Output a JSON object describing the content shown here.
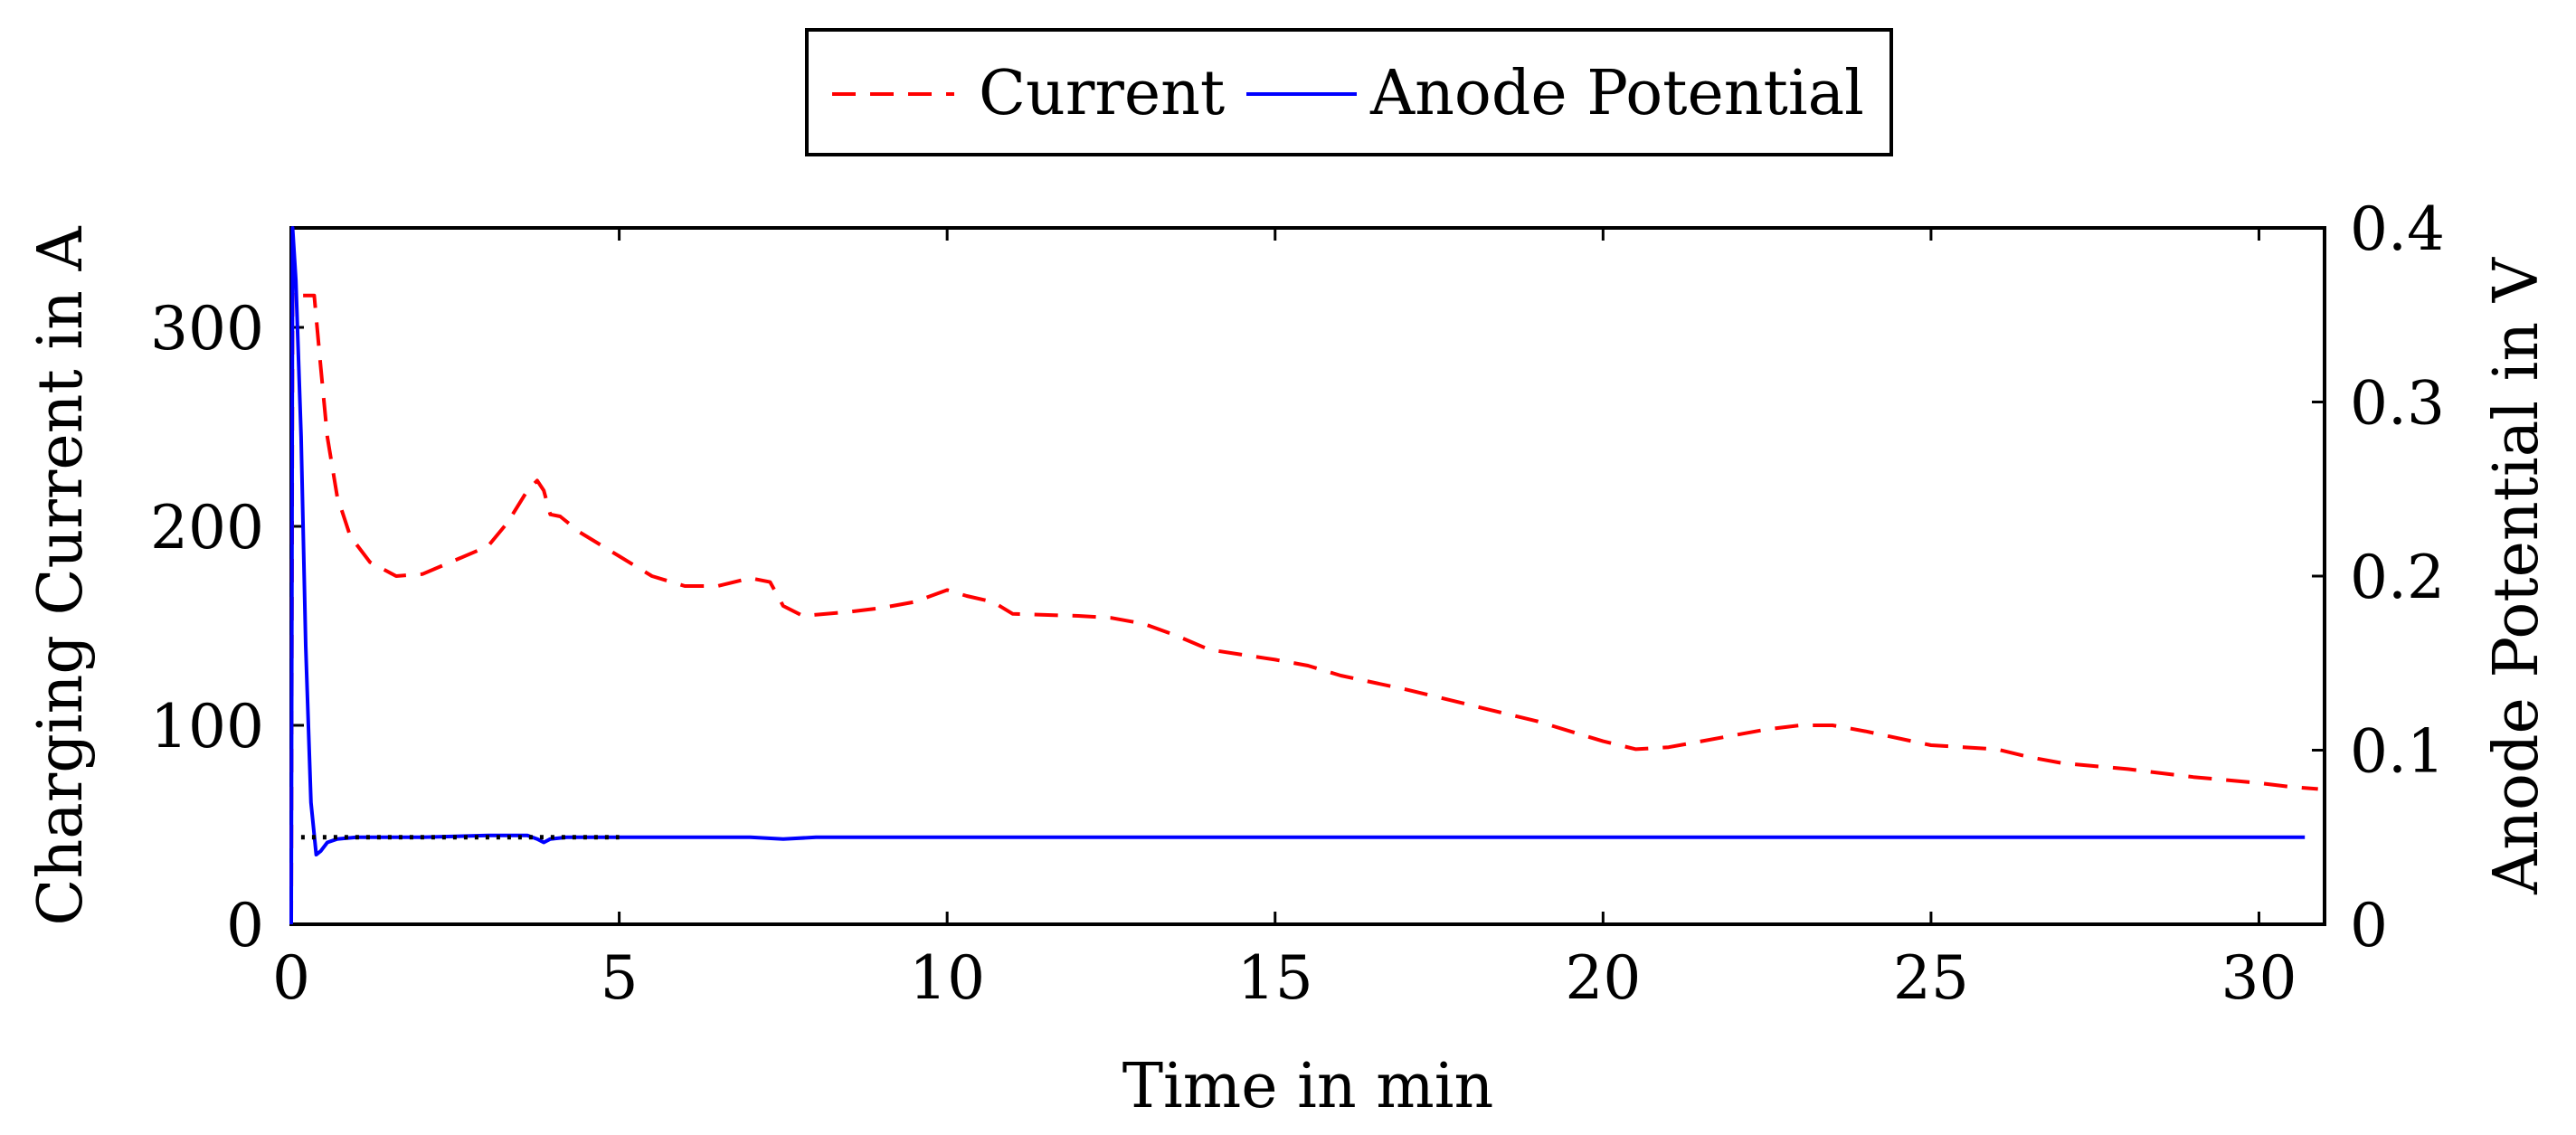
{
  "chart_data": {
    "type": "line",
    "title": "",
    "xlabel": "Time in min",
    "ylabel_left": "Charging Current in A",
    "ylabel_right": "Anode Potential in V",
    "xlim": [
      0,
      31
    ],
    "ylim_left": [
      0,
      350
    ],
    "ylim_right": [
      0,
      0.4
    ],
    "x_ticks": [
      0,
      5,
      10,
      15,
      20,
      25,
      30
    ],
    "y_left_ticks": [
      0,
      100,
      200,
      300
    ],
    "y_right_ticks": [
      0,
      0.1,
      0.2,
      0.3,
      0.4
    ],
    "x_tick_labels": [
      "0",
      "5",
      "10",
      "15",
      "20",
      "25",
      "30"
    ],
    "y_left_tick_labels": [
      "0",
      "100",
      "200",
      "300"
    ],
    "y_right_tick_labels": [
      "0",
      "0.1",
      "0.2",
      "0.3",
      "0.4"
    ],
    "grid": false,
    "legend_position": "top-center, above plot",
    "series": [
      {
        "name": "Current",
        "axis": "left",
        "color": "#ff0000",
        "style": "dashed",
        "x": [
          0,
          0.02,
          0.05,
          0.35,
          0.45,
          0.55,
          0.7,
          0.9,
          1.2,
          1.6,
          2.0,
          2.5,
          3.0,
          3.3,
          3.6,
          3.75,
          3.85,
          3.95,
          4.1,
          4.4,
          5.0,
          5.5,
          6.0,
          6.5,
          7.0,
          7.3,
          7.5,
          7.8,
          8.5,
          9.0,
          9.5,
          10.0,
          10.3,
          10.7,
          11.0,
          12.0,
          12.5,
          13.0,
          13.5,
          14.0,
          15.0,
          15.5,
          16.0,
          17.0,
          18.0,
          18.5,
          19.0,
          20.0,
          20.5,
          21.0,
          22.0,
          22.5,
          23.0,
          23.5,
          24.0,
          25.0,
          25.5,
          26.0,
          26.5,
          27.0,
          28.0,
          29.0,
          30.0,
          30.5,
          30.9
        ],
        "y": [
          0,
          318,
          316,
          316,
          280,
          245,
          215,
          195,
          182,
          175,
          176,
          183,
          190,
          202,
          218,
          223,
          218,
          206,
          205,
          197,
          185,
          175,
          170,
          170,
          174,
          172,
          160,
          155,
          157,
          159,
          162,
          168,
          165,
          162,
          156,
          155,
          154,
          151,
          145,
          138,
          133,
          130,
          125,
          118,
          110,
          106,
          102,
          92,
          88,
          89,
          95,
          98,
          100,
          100,
          97,
          90,
          89,
          88,
          84,
          81,
          78,
          74,
          71,
          69,
          68
        ]
      },
      {
        "name": "Anode Potential",
        "axis": "right",
        "color": "#0000ff",
        "style": "solid",
        "x": [
          0,
          0.02,
          0.07,
          0.15,
          0.22,
          0.3,
          0.38,
          0.45,
          0.55,
          0.7,
          1.0,
          2.0,
          3.0,
          3.6,
          3.75,
          3.85,
          3.95,
          4.2,
          5.0,
          7.0,
          7.5,
          8.0,
          10.0,
          15.0,
          20.0,
          25.0,
          30.0,
          30.7
        ],
        "y": [
          0.0,
          0.4,
          0.37,
          0.28,
          0.16,
          0.07,
          0.04,
          0.042,
          0.047,
          0.049,
          0.05,
          0.05,
          0.051,
          0.051,
          0.049,
          0.047,
          0.049,
          0.05,
          0.05,
          0.05,
          0.049,
          0.05,
          0.05,
          0.05,
          0.05,
          0.05,
          0.05,
          0.05
        ]
      },
      {
        "axis": "right",
        "color": "#000000",
        "style": "dotted",
        "x": [
          0.15,
          5.0
        ],
        "y": [
          0.05,
          0.05
        ]
      }
    ]
  }
}
